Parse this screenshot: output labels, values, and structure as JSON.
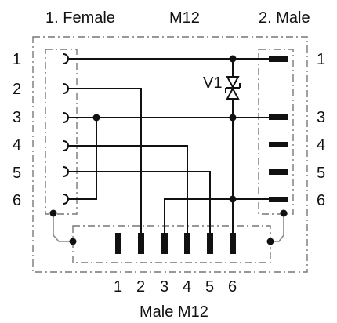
{
  "header": {
    "left": "1. Female",
    "center": "M12",
    "right": "2. Male"
  },
  "footer": {
    "label": "Male M12"
  },
  "left_pins": [
    "1",
    "2",
    "3",
    "4",
    "5",
    "6"
  ],
  "right_pins": [
    "1",
    "3",
    "4",
    "5",
    "6"
  ],
  "bottom_pins": [
    "1",
    "2",
    "3",
    "4",
    "5",
    "6"
  ],
  "component": {
    "label": "V1"
  },
  "colors": {
    "line": "#111111",
    "frame": "#777777"
  }
}
